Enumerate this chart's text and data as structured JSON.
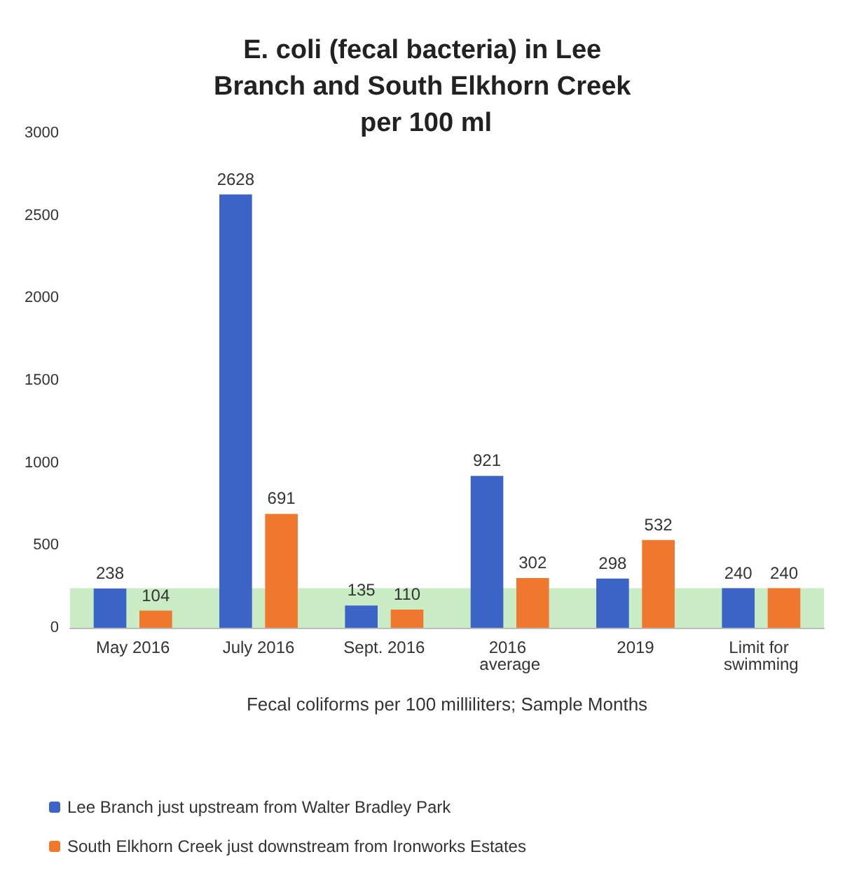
{
  "chart_data": {
    "type": "bar",
    "title": "E. coli (fecal bacteria) in Lee Branch and South Elkhorn Creek per 100 ml",
    "xlabel": "Fecal coliforms per 100 milliliters; Sample Months",
    "categories": [
      "May 2016",
      "July 2016",
      "Sept. 2016",
      "2016 average",
      "2019",
      "Limit for swimming"
    ],
    "series": [
      {
        "name": "Lee Branch just upstream from Walter Bradley Park",
        "color": "#3c63c6",
        "values": [
          238,
          2628,
          135,
          921,
          298,
          240
        ]
      },
      {
        "name": "South Elkhorn Creek just downstream from Ironworks Estates",
        "color": "#f0782e",
        "values": [
          104,
          691,
          110,
          302,
          532,
          240
        ]
      }
    ],
    "ylim": [
      0,
      3000
    ],
    "yticks": [
      0,
      500,
      1000,
      1500,
      2000,
      2500,
      3000
    ],
    "grid": false,
    "legend": "bottom",
    "data_labels": true,
    "bands": [
      {
        "axis": "y",
        "from": 0,
        "to": 240,
        "color": "#c9ecc4"
      }
    ]
  }
}
